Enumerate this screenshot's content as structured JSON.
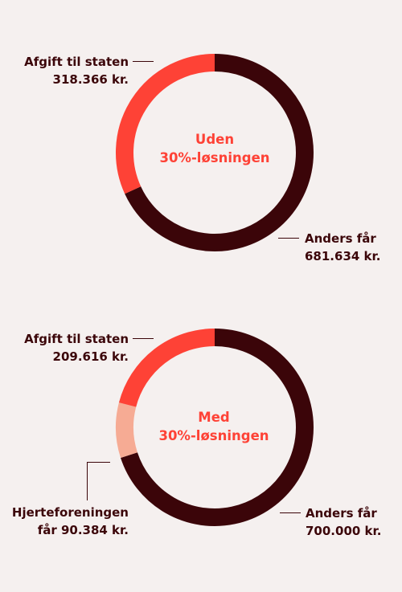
{
  "chart_data": [
    {
      "type": "pie",
      "title_lines": [
        "Uden",
        "30%-løsningen"
      ],
      "slices": [
        {
          "label_lines": [
            "Anders får",
            "681.634 kr."
          ],
          "value": 681634,
          "color": "#3b0509"
        },
        {
          "label_lines": [
            "Afgift til staten",
            "318.366 kr."
          ],
          "value": 318366,
          "color": "#fe4236"
        }
      ]
    },
    {
      "type": "pie",
      "title_lines": [
        "Med",
        "30%-løsningen"
      ],
      "slices": [
        {
          "label_lines": [
            "Anders får",
            "700.000 kr."
          ],
          "value": 700000,
          "color": "#3b0509"
        },
        {
          "label_lines": [
            "Hjerteforeningen",
            "får 90.384 kr."
          ],
          "value": 90384,
          "color": "#f6ab94"
        },
        {
          "label_lines": [
            "Afgift til staten",
            "209.616 kr."
          ],
          "value": 209616,
          "color": "#fe4236"
        }
      ]
    }
  ]
}
